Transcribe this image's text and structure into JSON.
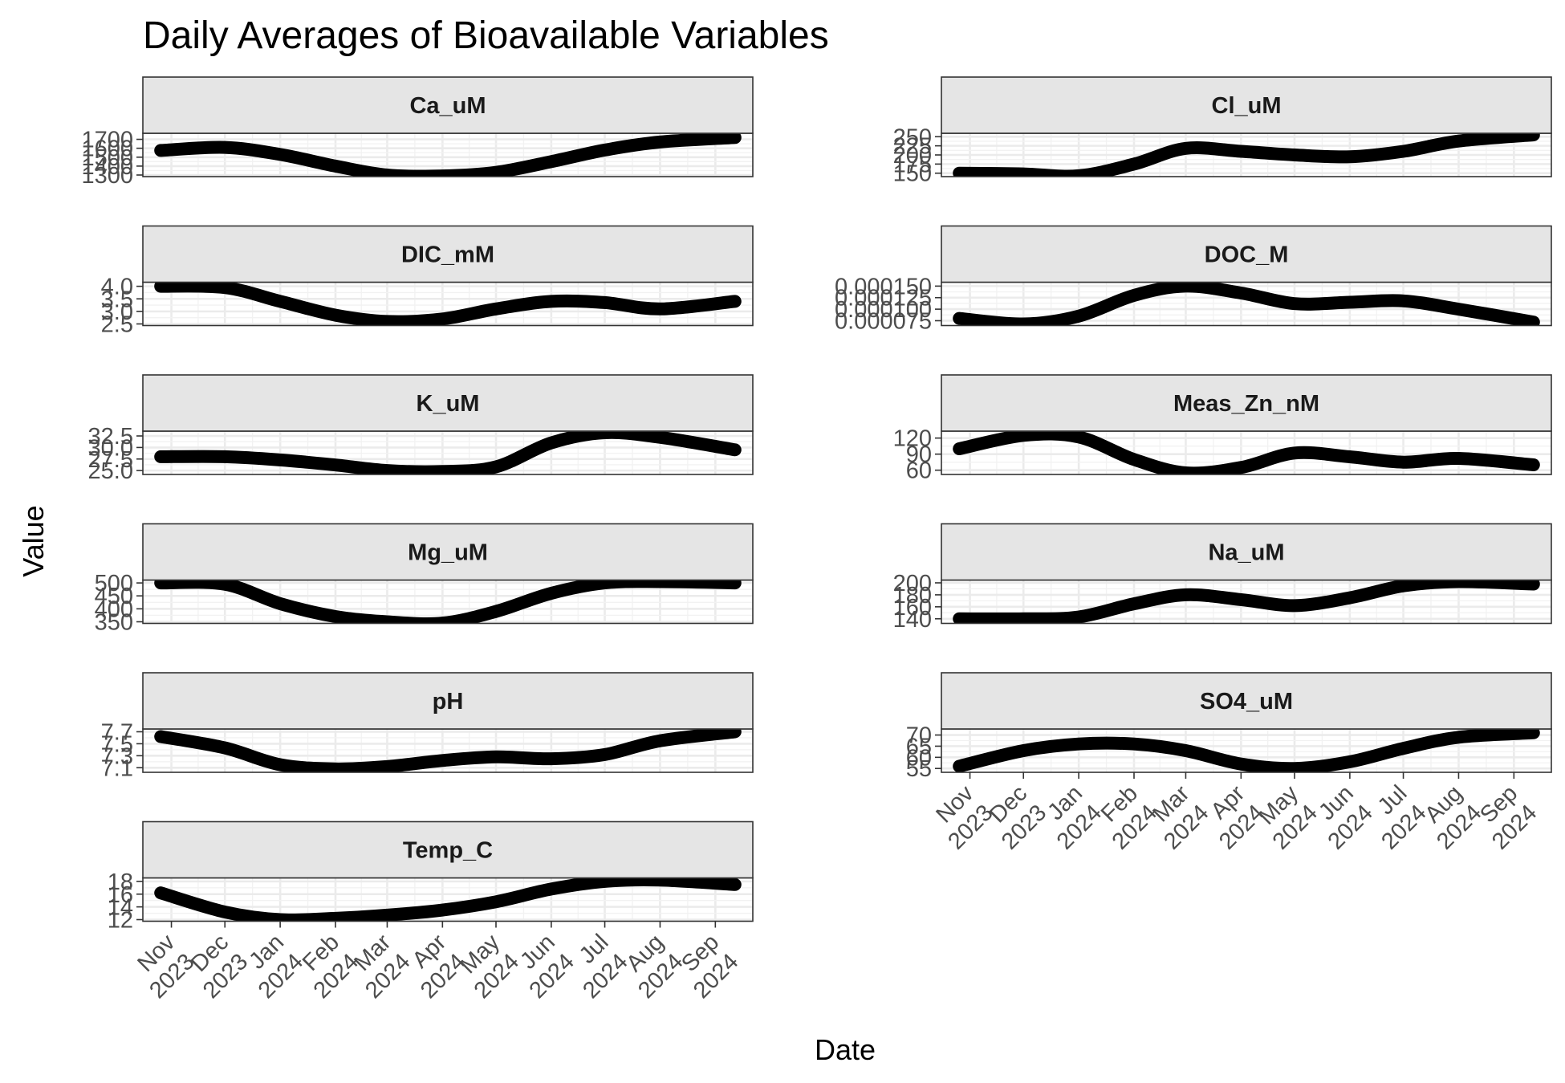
{
  "chart_data": {
    "type": "line",
    "title": "Daily Averages of Bioavailable Variables",
    "xlabel": "Date",
    "ylabel": "Value",
    "facet_layout": "2 columns, free y scales",
    "grid": true,
    "line_color": "#000000",
    "strip_fill": "#e5e5e5",
    "x_range": [
      "2023-10-16",
      "2024-09-22"
    ],
    "x_ticks": [
      {
        "date": "2023-11-01",
        "month": "Nov",
        "year": "2023"
      },
      {
        "date": "2023-12-01",
        "month": "Dec",
        "year": "2023"
      },
      {
        "date": "2024-01-01",
        "month": "Jan",
        "year": "2024"
      },
      {
        "date": "2024-02-01",
        "month": "Feb",
        "year": "2024"
      },
      {
        "date": "2024-03-01",
        "month": "Mar",
        "year": "2024"
      },
      {
        "date": "2024-04-01",
        "month": "Apr",
        "year": "2024"
      },
      {
        "date": "2024-05-01",
        "month": "May",
        "year": "2024"
      },
      {
        "date": "2024-06-01",
        "month": "Jun",
        "year": "2024"
      },
      {
        "date": "2024-07-01",
        "month": "Jul",
        "year": "2024"
      },
      {
        "date": "2024-08-01",
        "month": "Aug",
        "year": "2024"
      },
      {
        "date": "2024-09-01",
        "month": "Sep",
        "year": "2024"
      }
    ],
    "panels": [
      {
        "name": "Ca_uM",
        "ylim": [
          1300,
          1750
        ],
        "yticks": [
          1300,
          1400,
          1500,
          1600,
          1700
        ],
        "tick_labels": [
          "1300",
          "1400",
          "1500",
          "1600",
          "1700"
        ],
        "points": [
          [
            "2023-10-26",
            1575
          ],
          [
            "2023-12-01",
            1610
          ],
          [
            "2024-01-01",
            1530
          ],
          [
            "2024-02-01",
            1400
          ],
          [
            "2024-03-01",
            1300
          ],
          [
            "2024-04-01",
            1290
          ],
          [
            "2024-05-01",
            1330
          ],
          [
            "2024-06-01",
            1450
          ],
          [
            "2024-07-01",
            1580
          ],
          [
            "2024-08-01",
            1670
          ],
          [
            "2024-09-12",
            1720
          ]
        ]
      },
      {
        "name": "Cl_uM",
        "ylim": [
          145,
          255
        ],
        "yticks": [
          150,
          175,
          200,
          225,
          250
        ],
        "tick_labels": [
          "150",
          "175",
          "200",
          "225",
          "250"
        ],
        "points": [
          [
            "2023-10-26",
            150
          ],
          [
            "2023-12-01",
            148
          ],
          [
            "2024-01-01",
            143
          ],
          [
            "2024-02-01",
            175
          ],
          [
            "2024-03-01",
            218
          ],
          [
            "2024-04-01",
            210
          ],
          [
            "2024-05-01",
            200
          ],
          [
            "2024-06-01",
            195
          ],
          [
            "2024-07-01",
            210
          ],
          [
            "2024-08-01",
            238
          ],
          [
            "2024-09-12",
            255
          ]
        ]
      },
      {
        "name": "DIC_mM",
        "ylim": [
          2.5,
          4.1
        ],
        "yticks": [
          2.5,
          3.0,
          3.5,
          4.0
        ],
        "tick_labels": [
          "2.5",
          "3.0",
          "3.5",
          "4.0"
        ],
        "points": [
          [
            "2023-10-26",
            4.0
          ],
          [
            "2023-12-01",
            3.95
          ],
          [
            "2024-01-01",
            3.4
          ],
          [
            "2024-02-01",
            2.85
          ],
          [
            "2024-03-01",
            2.6
          ],
          [
            "2024-04-01",
            2.7
          ],
          [
            "2024-05-01",
            3.1
          ],
          [
            "2024-06-01",
            3.4
          ],
          [
            "2024-07-01",
            3.35
          ],
          [
            "2024-08-01",
            3.1
          ],
          [
            "2024-09-12",
            3.4
          ]
        ]
      },
      {
        "name": "DOC_M",
        "ylim": [
          6.8e-05,
          0.000155
        ],
        "yticks": [
          7.5e-05,
          0.0001,
          0.000125,
          0.00015
        ],
        "tick_labels": [
          "0.000075",
          "0.000100",
          "0.000125",
          "0.000150"
        ],
        "points": [
          [
            "2023-10-26",
            8e-05
          ],
          [
            "2023-12-01",
            6.8e-05
          ],
          [
            "2024-01-01",
            8.5e-05
          ],
          [
            "2024-02-01",
            0.00013
          ],
          [
            "2024-03-01",
            0.00015
          ],
          [
            "2024-04-01",
            0.000135
          ],
          [
            "2024-05-01",
            0.000112
          ],
          [
            "2024-06-01",
            0.000115
          ],
          [
            "2024-07-01",
            0.000118
          ],
          [
            "2024-08-01",
            0.0001
          ],
          [
            "2024-09-12",
            7.2e-05
          ]
        ]
      },
      {
        "name": "K_uM",
        "ylim": [
          24.5,
          33.2
        ],
        "yticks": [
          25.0,
          27.5,
          30.0,
          32.5
        ],
        "tick_labels": [
          "25.0",
          "27.5",
          "30.0",
          "32.5"
        ],
        "points": [
          [
            "2023-10-26",
            28.0
          ],
          [
            "2023-12-01",
            28.0
          ],
          [
            "2024-01-01",
            27.3
          ],
          [
            "2024-02-01",
            26.2
          ],
          [
            "2024-03-01",
            25.0
          ],
          [
            "2024-04-01",
            24.8
          ],
          [
            "2024-05-01",
            25.8
          ],
          [
            "2024-06-01",
            31.0
          ],
          [
            "2024-07-01",
            33.2
          ],
          [
            "2024-08-01",
            32.2
          ],
          [
            "2024-09-12",
            29.5
          ]
        ]
      },
      {
        "name": "Meas_Zn_nM",
        "ylim": [
          55,
          130
        ],
        "yticks": [
          60,
          90,
          120
        ],
        "tick_labels": [
          "60",
          "90",
          "120"
        ],
        "points": [
          [
            "2023-10-26",
            100
          ],
          [
            "2023-12-01",
            125
          ],
          [
            "2024-01-01",
            122
          ],
          [
            "2024-02-01",
            80
          ],
          [
            "2024-03-01",
            55
          ],
          [
            "2024-04-01",
            65
          ],
          [
            "2024-05-01",
            92
          ],
          [
            "2024-06-01",
            85
          ],
          [
            "2024-07-01",
            75
          ],
          [
            "2024-08-01",
            82
          ],
          [
            "2024-09-12",
            70
          ]
        ]
      },
      {
        "name": "Mg_uM",
        "ylim": [
          350,
          505
        ],
        "yticks": [
          350,
          400,
          450,
          500
        ],
        "tick_labels": [
          "350",
          "400",
          "450",
          "500"
        ],
        "points": [
          [
            "2023-10-26",
            500
          ],
          [
            "2023-12-01",
            495
          ],
          [
            "2024-01-01",
            420
          ],
          [
            "2024-02-01",
            370
          ],
          [
            "2024-03-01",
            350
          ],
          [
            "2024-04-01",
            345
          ],
          [
            "2024-05-01",
            390
          ],
          [
            "2024-06-01",
            460
          ],
          [
            "2024-07-01",
            500
          ],
          [
            "2024-08-01",
            505
          ],
          [
            "2024-09-12",
            500
          ]
        ]
      },
      {
        "name": "Na_uM",
        "ylim": [
          135,
          202
        ],
        "yticks": [
          140,
          160,
          180,
          200
        ],
        "tick_labels": [
          "140",
          "160",
          "180",
          "200"
        ],
        "points": [
          [
            "2023-10-26",
            140
          ],
          [
            "2023-12-01",
            140
          ],
          [
            "2024-01-01",
            143
          ],
          [
            "2024-02-01",
            165
          ],
          [
            "2024-03-01",
            180
          ],
          [
            "2024-04-01",
            172
          ],
          [
            "2024-05-01",
            162
          ],
          [
            "2024-06-01",
            175
          ],
          [
            "2024-07-01",
            195
          ],
          [
            "2024-08-01",
            202
          ],
          [
            "2024-09-12",
            198
          ]
        ]
      },
      {
        "name": "pH",
        "ylim": [
          7.05,
          7.72
        ],
        "yticks": [
          7.1,
          7.3,
          7.5,
          7.7
        ],
        "tick_labels": [
          "7.1",
          "7.3",
          "7.5",
          "7.7"
        ],
        "points": [
          [
            "2023-10-26",
            7.62
          ],
          [
            "2023-12-01",
            7.43
          ],
          [
            "2024-01-01",
            7.15
          ],
          [
            "2024-02-01",
            7.08
          ],
          [
            "2024-03-01",
            7.12
          ],
          [
            "2024-04-01",
            7.22
          ],
          [
            "2024-05-01",
            7.28
          ],
          [
            "2024-06-01",
            7.25
          ],
          [
            "2024-07-01",
            7.32
          ],
          [
            "2024-08-01",
            7.55
          ],
          [
            "2024-09-12",
            7.7
          ]
        ]
      },
      {
        "name": "SO4_uM",
        "ylim": [
          54,
          72
        ],
        "yticks": [
          55,
          60,
          65,
          70
        ],
        "tick_labels": [
          "55",
          "60",
          "65",
          "70"
        ],
        "points": [
          [
            "2023-10-26",
            56
          ],
          [
            "2023-12-01",
            63
          ],
          [
            "2024-01-01",
            66
          ],
          [
            "2024-02-01",
            66
          ],
          [
            "2024-03-01",
            63
          ],
          [
            "2024-04-01",
            57
          ],
          [
            "2024-05-01",
            55
          ],
          [
            "2024-06-01",
            58
          ],
          [
            "2024-07-01",
            64
          ],
          [
            "2024-08-01",
            69
          ],
          [
            "2024-09-12",
            71
          ]
        ]
      },
      {
        "name": "Temp_C",
        "ylim": [
          12,
          18.3
        ],
        "yticks": [
          12,
          14,
          16,
          18
        ],
        "tick_labels": [
          "12",
          "14",
          "16",
          "18"
        ],
        "points": [
          [
            "2023-10-26",
            16.2
          ],
          [
            "2023-12-01",
            13.2
          ],
          [
            "2024-01-01",
            12.0
          ],
          [
            "2024-02-01",
            12.2
          ],
          [
            "2024-03-01",
            12.7
          ],
          [
            "2024-04-01",
            13.5
          ],
          [
            "2024-05-01",
            14.8
          ],
          [
            "2024-06-01",
            16.8
          ],
          [
            "2024-07-01",
            18.0
          ],
          [
            "2024-08-01",
            18.2
          ],
          [
            "2024-09-12",
            17.5
          ]
        ]
      }
    ]
  }
}
